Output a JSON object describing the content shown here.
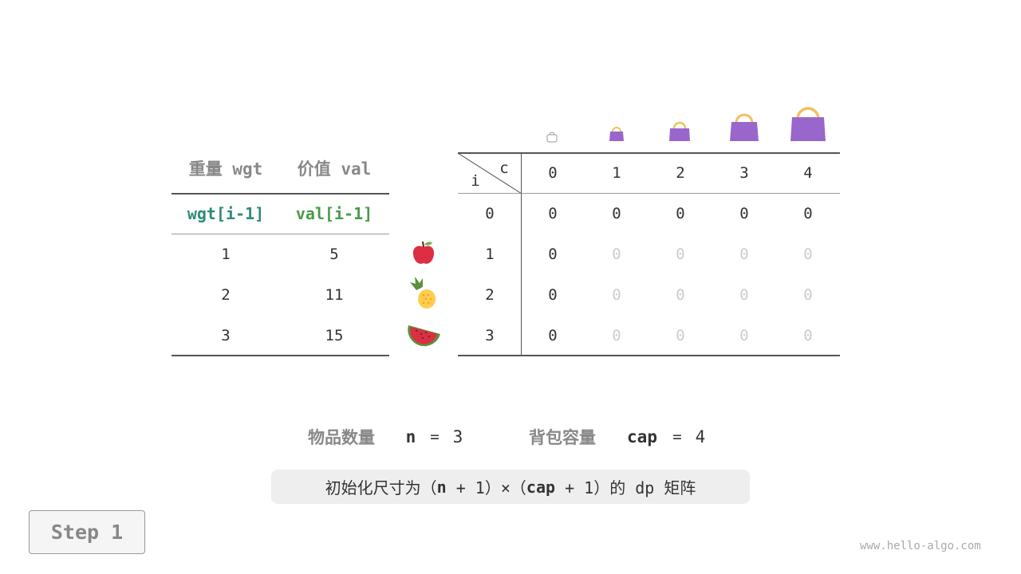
{
  "left_table": {
    "headers": [
      "重量 wgt",
      "价值 val"
    ],
    "subheaders": [
      "wgt[i-1]",
      "val[i-1]"
    ],
    "rows": [
      [
        "1",
        "5"
      ],
      [
        "2",
        "11"
      ],
      [
        "3",
        "15"
      ]
    ],
    "subheader_colors": [
      "#2e8b7a",
      "#4a9a4a"
    ]
  },
  "items": [
    {
      "icon": "apple-icon"
    },
    {
      "icon": "pineapple-icon"
    },
    {
      "icon": "watermelon-icon"
    }
  ],
  "dp_table": {
    "corner_col": "c",
    "corner_row": "i",
    "col_headers": [
      "0",
      "1",
      "2",
      "3",
      "4"
    ],
    "row_headers": [
      "0",
      "1",
      "2",
      "3"
    ],
    "cells": [
      [
        "0",
        "0",
        "0",
        "0",
        "0"
      ],
      [
        "0",
        "0",
        "0",
        "0",
        "0"
      ],
      [
        "0",
        "0",
        "0",
        "0",
        "0"
      ],
      [
        "0",
        "0",
        "0",
        "0",
        "0"
      ]
    ],
    "bag_icons": [
      "bag-icon",
      "bag-icon",
      "bag-icon",
      "bag-icon",
      "bag-icon"
    ]
  },
  "params": {
    "n_label": "物品数量",
    "n_var": "n",
    "n_eq": "=",
    "n_val": "3",
    "cap_label": "背包容量",
    "cap_var": "cap",
    "cap_eq": "=",
    "cap_val": "4"
  },
  "caption": {
    "pre": "初始化尺寸为（",
    "n": "n",
    "mid1": " + 1）×（",
    "cap": "cap",
    "mid2": " + 1）的 dp 矩阵"
  },
  "step_label": "Step 1",
  "watermark": "www.hello-algo.com",
  "colors": {
    "bag": "#9966cc",
    "handle": "#f0c060",
    "inactive": "#cccccc"
  }
}
